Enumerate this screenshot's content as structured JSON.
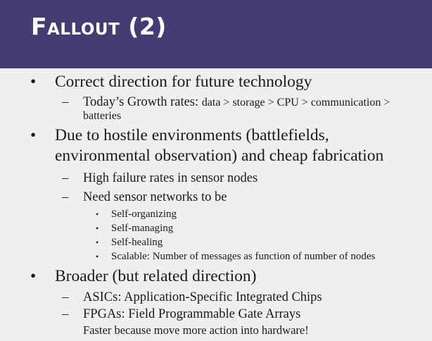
{
  "slide": {
    "title": "Fallout (2)",
    "bullets": {
      "b1": {
        "text": "Correct direction for future technology",
        "sub1_prefix": "Today’s Growth rates: ",
        "sub1_rest": "data > storage > CPU > communication >",
        "sub1_wrap": "batteries"
      },
      "b2": {
        "line1": "Due to hostile environments (battlefields,",
        "line2": "environmental observation) and cheap fabrication",
        "sub1": "High failure rates in sensor nodes",
        "sub2": "Need sensor networks to be",
        "items": [
          "Self-organizing",
          "Self-managing",
          "Self-healing",
          "Scalable: Number of messages as function of number of nodes"
        ]
      },
      "b3": {
        "text": "Broader (but related direction)",
        "sub1": "ASICs: Application-Specific Integrated Chips",
        "sub2": "FPGAs: Field Programmable Gate Arrays",
        "sub3": "Faster because move more action into hardware!"
      }
    },
    "markers": {
      "bullet": "•",
      "dash": "–"
    }
  },
  "colors": {
    "title_bar": "#433d74",
    "title_text": "#ffffff",
    "background": "#efefef",
    "body_text": "#1a1a1a"
  }
}
